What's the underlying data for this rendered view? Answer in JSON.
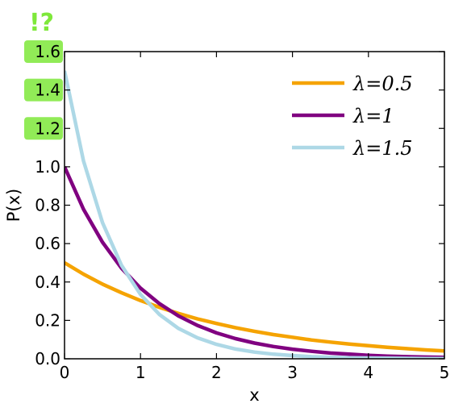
{
  "chart_data": {
    "type": "line",
    "xlabel": "x",
    "ylabel": "P(x)",
    "xlim": [
      0,
      5
    ],
    "ylim": [
      0,
      1.6
    ],
    "xticks": [
      "0",
      "1",
      "2",
      "3",
      "4",
      "5"
    ],
    "yticks": [
      "0.0",
      "0.2",
      "0.4",
      "0.6",
      "0.8",
      "1.0",
      "1.2",
      "1.4",
      "1.6"
    ],
    "grid": false,
    "legend_position": "top-right",
    "x": [
      0,
      0.25,
      0.5,
      0.75,
      1,
      1.25,
      1.5,
      1.75,
      2,
      2.25,
      2.5,
      2.75,
      3,
      3.25,
      3.5,
      3.75,
      4,
      4.25,
      4.5,
      4.75,
      5
    ],
    "series": [
      {
        "name": "λ=0.5",
        "color": "#f5a300",
        "values": [
          0.5,
          0.441,
          0.389,
          0.344,
          0.303,
          0.268,
          0.236,
          0.208,
          0.184,
          0.162,
          0.143,
          0.126,
          0.112,
          0.098,
          0.087,
          0.077,
          0.068,
          0.06,
          0.053,
          0.046,
          0.041
        ]
      },
      {
        "name": "λ=1",
        "color": "#800080",
        "values": [
          1.0,
          0.779,
          0.607,
          0.472,
          0.368,
          0.287,
          0.223,
          0.174,
          0.135,
          0.105,
          0.082,
          0.064,
          0.05,
          0.039,
          0.03,
          0.024,
          0.018,
          0.014,
          0.011,
          0.009,
          0.007
        ]
      },
      {
        "name": "λ=1.5",
        "color": "#add8e6",
        "values": [
          1.5,
          1.031,
          0.709,
          0.487,
          0.335,
          0.23,
          0.158,
          0.109,
          0.075,
          0.051,
          0.035,
          0.024,
          0.017,
          0.011,
          0.008,
          0.005,
          0.004,
          0.003,
          0.002,
          0.001,
          0.001
        ]
      }
    ],
    "annotation": "!?",
    "highlight_color": "#7ee83a",
    "highlighted_yticks": [
      "1.6",
      "1.4",
      "1.2"
    ]
  }
}
